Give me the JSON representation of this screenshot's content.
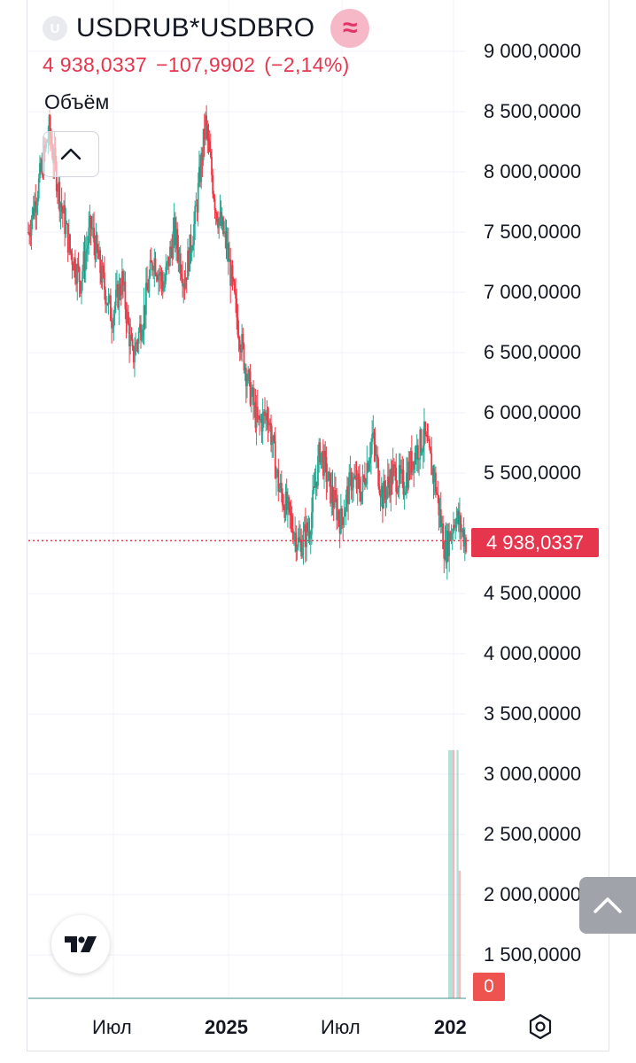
{
  "header": {
    "badge_letter": "U",
    "symbol": "USDRUB*USDBRO",
    "live_badge_icon": "≈",
    "last_price": "4 938,0337",
    "change": "−107,9902",
    "change_pct": "(−2,14%)"
  },
  "volume_label": "Объём",
  "price_tag": "4 938,0337",
  "volume_tag": "0",
  "colors": {
    "up": "#22ab94",
    "down": "#f23645",
    "price_tag": "#e5364e",
    "accent_badge": "#f6b7c6"
  },
  "y_axis_labels": [
    "9 000,0000",
    "8 500,0000",
    "8 000,0000",
    "7 500,0000",
    "7 000,0000",
    "6 500,0000",
    "6 000,0000",
    "5 500,0000",
    "4 500,0000",
    "4 000,0000",
    "3 500,0000",
    "3 000,0000",
    "2 500,0000",
    "2 000,0000",
    "1 500,0000"
  ],
  "x_axis_labels": [
    "Июл",
    "2025",
    "Июл",
    "202"
  ],
  "icons": {
    "collapse": "chevron-up-icon",
    "logo": "tradingview-logo-icon",
    "scroll": "chevron-up-icon",
    "settings": "hexagon-settings-icon"
  },
  "chart_data": {
    "type": "candlestick",
    "symbol": "USDRUB*USDBRO",
    "x_ticks": [
      "Июл",
      "2025",
      "Июл",
      "202"
    ],
    "ylim": [
      1300,
      9300
    ],
    "last_value": 4938.0337,
    "close_path": [
      {
        "t": 0,
        "v": 7500
      },
      {
        "t": 5,
        "v": 7900
      },
      {
        "t": 10,
        "v": 8350
      },
      {
        "t": 15,
        "v": 7800
      },
      {
        "t": 20,
        "v": 7350
      },
      {
        "t": 25,
        "v": 7100
      },
      {
        "t": 30,
        "v": 7550
      },
      {
        "t": 35,
        "v": 7150
      },
      {
        "t": 40,
        "v": 6800
      },
      {
        "t": 45,
        "v": 7100
      },
      {
        "t": 50,
        "v": 6450
      },
      {
        "t": 55,
        "v": 6800
      },
      {
        "t": 60,
        "v": 7300
      },
      {
        "t": 65,
        "v": 7050
      },
      {
        "t": 70,
        "v": 7500
      },
      {
        "t": 75,
        "v": 7100
      },
      {
        "t": 80,
        "v": 7600
      },
      {
        "t": 85,
        "v": 8400
      },
      {
        "t": 90,
        "v": 7700
      },
      {
        "t": 95,
        "v": 7400
      },
      {
        "t": 100,
        "v": 6800
      },
      {
        "t": 105,
        "v": 6300
      },
      {
        "t": 110,
        "v": 5900
      },
      {
        "t": 115,
        "v": 6000
      },
      {
        "t": 120,
        "v": 5400
      },
      {
        "t": 125,
        "v": 5150
      },
      {
        "t": 130,
        "v": 4900
      },
      {
        "t": 135,
        "v": 5050
      },
      {
        "t": 140,
        "v": 5700
      },
      {
        "t": 145,
        "v": 5350
      },
      {
        "t": 150,
        "v": 5100
      },
      {
        "t": 155,
        "v": 5450
      },
      {
        "t": 160,
        "v": 5350
      },
      {
        "t": 165,
        "v": 5800
      },
      {
        "t": 170,
        "v": 5300
      },
      {
        "t": 175,
        "v": 5500
      },
      {
        "t": 180,
        "v": 5400
      },
      {
        "t": 185,
        "v": 5650
      },
      {
        "t": 190,
        "v": 5800
      },
      {
        "t": 195,
        "v": 5450
      },
      {
        "t": 200,
        "v": 4850
      },
      {
        "t": 205,
        "v": 5150
      },
      {
        "t": 210,
        "v": 4938
      }
    ],
    "volume": [
      {
        "t": 202,
        "v": 3200,
        "dir": "up"
      },
      {
        "t": 203,
        "v": 3200,
        "dir": "up"
      },
      {
        "t": 204,
        "v": 3200,
        "dir": "down"
      },
      {
        "t": 206,
        "v": 3200,
        "dir": "up"
      },
      {
        "t": 207,
        "v": 2200,
        "dir": "down"
      }
    ]
  }
}
